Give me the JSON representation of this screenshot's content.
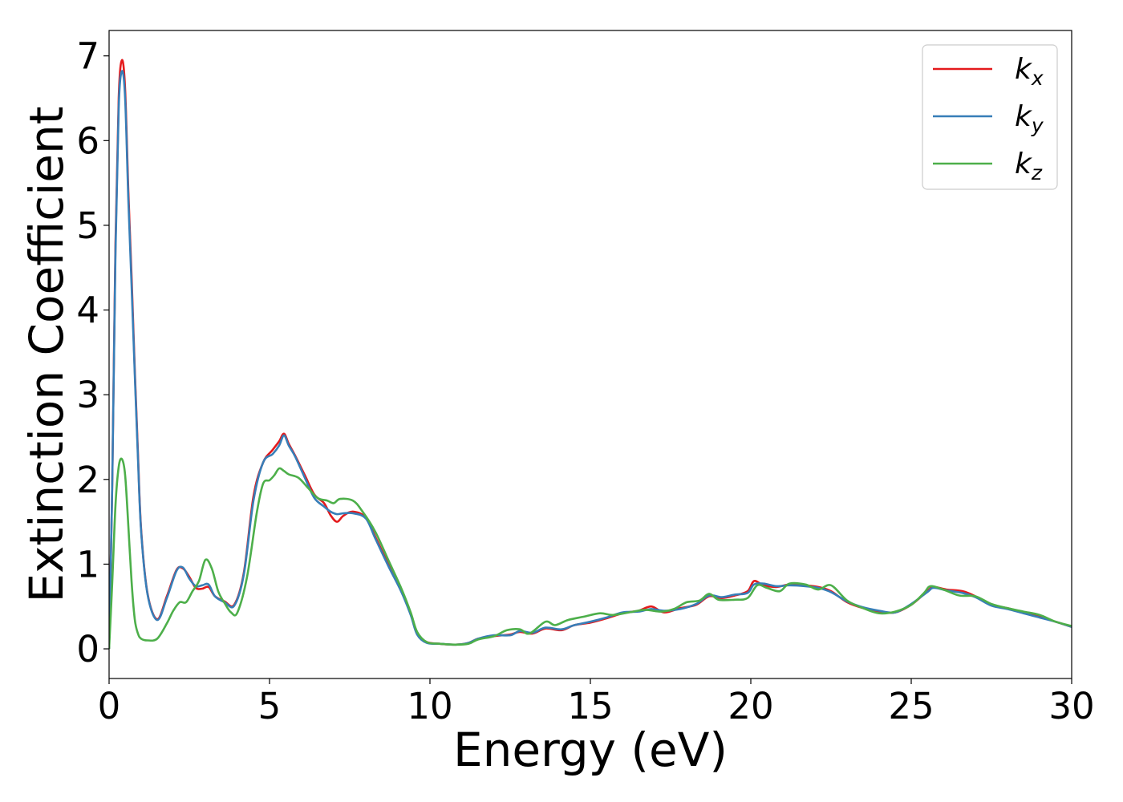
{
  "chart_data": {
    "type": "line",
    "title": "",
    "xlabel": "Energy (eV)",
    "ylabel": "Extinction Coefficient",
    "xlim": [
      0,
      30
    ],
    "ylim": [
      -0.35,
      7.3
    ],
    "xticks": [
      "0",
      "5",
      "10",
      "15",
      "20",
      "25",
      "30"
    ],
    "yticks": [
      "0",
      "1",
      "2",
      "3",
      "4",
      "5",
      "6",
      "7"
    ],
    "grid": false,
    "legend_position": "top-right",
    "series": [
      {
        "name": "k_x",
        "label_base": "k",
        "label_sub": "x",
        "color": "#e41a1c",
        "points": [
          [
            0,
            0
          ],
          [
            0.1,
            2.0
          ],
          [
            0.2,
            4.8
          ],
          [
            0.3,
            6.5
          ],
          [
            0.4,
            6.95
          ],
          [
            0.5,
            6.6
          ],
          [
            0.6,
            5.4
          ],
          [
            0.7,
            4.4
          ],
          [
            0.8,
            3.3
          ],
          [
            0.9,
            2.3
          ],
          [
            1.0,
            1.4
          ],
          [
            1.2,
            0.65
          ],
          [
            1.5,
            0.35
          ],
          [
            1.8,
            0.62
          ],
          [
            2.1,
            0.93
          ],
          [
            2.3,
            0.95
          ],
          [
            2.5,
            0.85
          ],
          [
            2.7,
            0.72
          ],
          [
            2.9,
            0.71
          ],
          [
            3.1,
            0.73
          ],
          [
            3.3,
            0.62
          ],
          [
            3.6,
            0.56
          ],
          [
            3.9,
            0.52
          ],
          [
            4.2,
            0.9
          ],
          [
            4.5,
            1.8
          ],
          [
            4.8,
            2.2
          ],
          [
            5.1,
            2.35
          ],
          [
            5.3,
            2.45
          ],
          [
            5.45,
            2.54
          ],
          [
            5.6,
            2.42
          ],
          [
            5.8,
            2.28
          ],
          [
            6.1,
            2.05
          ],
          [
            6.4,
            1.82
          ],
          [
            6.7,
            1.72
          ],
          [
            6.9,
            1.58
          ],
          [
            7.1,
            1.5
          ],
          [
            7.3,
            1.57
          ],
          [
            7.6,
            1.62
          ],
          [
            8.0,
            1.55
          ],
          [
            8.3,
            1.32
          ],
          [
            8.7,
            1.0
          ],
          [
            9.1,
            0.7
          ],
          [
            9.4,
            0.42
          ],
          [
            9.6,
            0.18
          ],
          [
            9.9,
            0.08
          ],
          [
            10.3,
            0.06
          ],
          [
            10.8,
            0.05
          ],
          [
            11.2,
            0.07
          ],
          [
            11.5,
            0.12
          ],
          [
            12.0,
            0.15
          ],
          [
            12.5,
            0.17
          ],
          [
            12.8,
            0.2
          ],
          [
            13.2,
            0.18
          ],
          [
            13.6,
            0.24
          ],
          [
            14.1,
            0.22
          ],
          [
            14.5,
            0.28
          ],
          [
            15.0,
            0.31
          ],
          [
            15.5,
            0.36
          ],
          [
            16.0,
            0.42
          ],
          [
            16.5,
            0.45
          ],
          [
            16.9,
            0.5
          ],
          [
            17.3,
            0.43
          ],
          [
            17.8,
            0.48
          ],
          [
            18.3,
            0.52
          ],
          [
            18.7,
            0.62
          ],
          [
            19.1,
            0.6
          ],
          [
            19.5,
            0.63
          ],
          [
            19.9,
            0.68
          ],
          [
            20.1,
            0.8
          ],
          [
            20.4,
            0.75
          ],
          [
            20.8,
            0.73
          ],
          [
            21.2,
            0.76
          ],
          [
            21.7,
            0.75
          ],
          [
            22.1,
            0.73
          ],
          [
            22.5,
            0.68
          ],
          [
            23.0,
            0.55
          ],
          [
            23.5,
            0.48
          ],
          [
            24.0,
            0.44
          ],
          [
            24.5,
            0.43
          ],
          [
            25.0,
            0.52
          ],
          [
            25.5,
            0.68
          ],
          [
            25.7,
            0.73
          ],
          [
            26.1,
            0.7
          ],
          [
            26.6,
            0.68
          ],
          [
            27.0,
            0.62
          ],
          [
            27.5,
            0.52
          ],
          [
            28.0,
            0.48
          ],
          [
            28.5,
            0.43
          ],
          [
            29.0,
            0.38
          ],
          [
            29.5,
            0.32
          ],
          [
            30.0,
            0.26
          ]
        ]
      },
      {
        "name": "k_y",
        "label_base": "k",
        "label_sub": "y",
        "color": "#377eb8",
        "points": [
          [
            0,
            0
          ],
          [
            0.1,
            2.0
          ],
          [
            0.2,
            4.7
          ],
          [
            0.3,
            6.4
          ],
          [
            0.4,
            6.82
          ],
          [
            0.5,
            6.5
          ],
          [
            0.6,
            5.3
          ],
          [
            0.7,
            4.3
          ],
          [
            0.8,
            3.25
          ],
          [
            0.9,
            2.25
          ],
          [
            1.0,
            1.38
          ],
          [
            1.2,
            0.64
          ],
          [
            1.5,
            0.34
          ],
          [
            1.8,
            0.6
          ],
          [
            2.1,
            0.92
          ],
          [
            2.3,
            0.96
          ],
          [
            2.5,
            0.83
          ],
          [
            2.7,
            0.74
          ],
          [
            2.9,
            0.75
          ],
          [
            3.1,
            0.76
          ],
          [
            3.3,
            0.62
          ],
          [
            3.6,
            0.55
          ],
          [
            3.9,
            0.51
          ],
          [
            4.2,
            0.88
          ],
          [
            4.5,
            1.75
          ],
          [
            4.8,
            2.2
          ],
          [
            5.1,
            2.3
          ],
          [
            5.3,
            2.4
          ],
          [
            5.45,
            2.52
          ],
          [
            5.6,
            2.4
          ],
          [
            5.8,
            2.27
          ],
          [
            6.1,
            2.02
          ],
          [
            6.4,
            1.78
          ],
          [
            6.7,
            1.68
          ],
          [
            6.9,
            1.62
          ],
          [
            7.1,
            1.59
          ],
          [
            7.3,
            1.6
          ],
          [
            7.6,
            1.6
          ],
          [
            8.0,
            1.54
          ],
          [
            8.3,
            1.3
          ],
          [
            8.7,
            0.98
          ],
          [
            9.1,
            0.68
          ],
          [
            9.4,
            0.4
          ],
          [
            9.6,
            0.17
          ],
          [
            9.9,
            0.07
          ],
          [
            10.3,
            0.06
          ],
          [
            10.8,
            0.05
          ],
          [
            11.2,
            0.07
          ],
          [
            11.5,
            0.12
          ],
          [
            12.0,
            0.16
          ],
          [
            12.5,
            0.16
          ],
          [
            12.8,
            0.21
          ],
          [
            13.2,
            0.19
          ],
          [
            13.6,
            0.25
          ],
          [
            14.1,
            0.23
          ],
          [
            14.5,
            0.28
          ],
          [
            15.0,
            0.32
          ],
          [
            15.5,
            0.37
          ],
          [
            16.0,
            0.43
          ],
          [
            16.5,
            0.44
          ],
          [
            16.9,
            0.47
          ],
          [
            17.3,
            0.45
          ],
          [
            17.8,
            0.47
          ],
          [
            18.3,
            0.53
          ],
          [
            18.7,
            0.63
          ],
          [
            19.1,
            0.61
          ],
          [
            19.5,
            0.64
          ],
          [
            19.9,
            0.66
          ],
          [
            20.1,
            0.76
          ],
          [
            20.4,
            0.77
          ],
          [
            20.8,
            0.74
          ],
          [
            21.2,
            0.75
          ],
          [
            21.7,
            0.74
          ],
          [
            22.1,
            0.72
          ],
          [
            22.5,
            0.67
          ],
          [
            23.0,
            0.56
          ],
          [
            23.5,
            0.49
          ],
          [
            24.0,
            0.45
          ],
          [
            24.5,
            0.43
          ],
          [
            25.0,
            0.53
          ],
          [
            25.5,
            0.67
          ],
          [
            25.7,
            0.72
          ],
          [
            26.1,
            0.69
          ],
          [
            26.6,
            0.66
          ],
          [
            27.0,
            0.61
          ],
          [
            27.5,
            0.51
          ],
          [
            28.0,
            0.47
          ],
          [
            28.5,
            0.42
          ],
          [
            29.0,
            0.37
          ],
          [
            29.5,
            0.32
          ],
          [
            30.0,
            0.26
          ]
        ]
      },
      {
        "name": "k_z",
        "label_base": "k",
        "label_sub": "z",
        "color": "#4daf4a",
        "points": [
          [
            0,
            0
          ],
          [
            0.1,
            0.8
          ],
          [
            0.2,
            1.7
          ],
          [
            0.3,
            2.15
          ],
          [
            0.4,
            2.24
          ],
          [
            0.5,
            2.05
          ],
          [
            0.6,
            1.45
          ],
          [
            0.7,
            0.8
          ],
          [
            0.8,
            0.35
          ],
          [
            0.9,
            0.18
          ],
          [
            1.0,
            0.12
          ],
          [
            1.2,
            0.1
          ],
          [
            1.5,
            0.12
          ],
          [
            1.8,
            0.3
          ],
          [
            2.0,
            0.45
          ],
          [
            2.2,
            0.55
          ],
          [
            2.4,
            0.55
          ],
          [
            2.6,
            0.68
          ],
          [
            2.8,
            0.8
          ],
          [
            3.0,
            1.05
          ],
          [
            3.2,
            0.95
          ],
          [
            3.4,
            0.68
          ],
          [
            3.6,
            0.54
          ],
          [
            3.8,
            0.43
          ],
          [
            4.0,
            0.43
          ],
          [
            4.3,
            0.85
          ],
          [
            4.6,
            1.6
          ],
          [
            4.8,
            1.95
          ],
          [
            5.0,
            1.99
          ],
          [
            5.15,
            2.05
          ],
          [
            5.3,
            2.13
          ],
          [
            5.45,
            2.1
          ],
          [
            5.6,
            2.06
          ],
          [
            5.9,
            2.02
          ],
          [
            6.2,
            1.9
          ],
          [
            6.5,
            1.78
          ],
          [
            6.8,
            1.75
          ],
          [
            7.0,
            1.72
          ],
          [
            7.2,
            1.77
          ],
          [
            7.6,
            1.75
          ],
          [
            7.9,
            1.62
          ],
          [
            8.3,
            1.38
          ],
          [
            8.7,
            1.05
          ],
          [
            9.1,
            0.72
          ],
          [
            9.4,
            0.43
          ],
          [
            9.6,
            0.2
          ],
          [
            9.9,
            0.08
          ],
          [
            10.3,
            0.06
          ],
          [
            10.8,
            0.05
          ],
          [
            11.2,
            0.06
          ],
          [
            11.5,
            0.11
          ],
          [
            12.0,
            0.15
          ],
          [
            12.4,
            0.22
          ],
          [
            12.8,
            0.23
          ],
          [
            13.1,
            0.18
          ],
          [
            13.6,
            0.32
          ],
          [
            13.9,
            0.28
          ],
          [
            14.3,
            0.34
          ],
          [
            14.8,
            0.38
          ],
          [
            15.3,
            0.42
          ],
          [
            15.7,
            0.4
          ],
          [
            16.2,
            0.43
          ],
          [
            16.7,
            0.46
          ],
          [
            17.2,
            0.44
          ],
          [
            17.6,
            0.47
          ],
          [
            18.0,
            0.55
          ],
          [
            18.4,
            0.57
          ],
          [
            18.7,
            0.65
          ],
          [
            19.0,
            0.58
          ],
          [
            19.5,
            0.58
          ],
          [
            19.9,
            0.6
          ],
          [
            20.2,
            0.75
          ],
          [
            20.5,
            0.72
          ],
          [
            20.9,
            0.68
          ],
          [
            21.2,
            0.77
          ],
          [
            21.7,
            0.76
          ],
          [
            22.1,
            0.7
          ],
          [
            22.5,
            0.75
          ],
          [
            23.0,
            0.57
          ],
          [
            23.5,
            0.48
          ],
          [
            24.0,
            0.42
          ],
          [
            24.5,
            0.44
          ],
          [
            25.0,
            0.52
          ],
          [
            25.4,
            0.66
          ],
          [
            25.6,
            0.74
          ],
          [
            26.0,
            0.7
          ],
          [
            26.5,
            0.63
          ],
          [
            27.0,
            0.62
          ],
          [
            27.5,
            0.53
          ],
          [
            28.0,
            0.48
          ],
          [
            28.5,
            0.44
          ],
          [
            29.0,
            0.4
          ],
          [
            29.5,
            0.32
          ],
          [
            30.0,
            0.27
          ]
        ]
      }
    ]
  }
}
